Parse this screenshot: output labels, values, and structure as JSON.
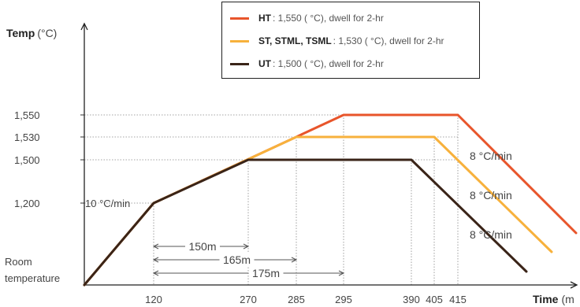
{
  "chart_data": {
    "type": "line",
    "y_axis_title": "Temp",
    "y_axis_unit": "(°C)",
    "x_axis_title": "Time",
    "x_axis_unit": "(m",
    "y_origin_label": [
      "Room",
      "temperature"
    ],
    "x_ticks": [
      120,
      270,
      285,
      295,
      390,
      405,
      415
    ],
    "x_tick_labels": [
      "120",
      "270",
      "285",
      "295",
      "390",
      "405",
      "415"
    ],
    "y_ticks": [
      1200,
      1500,
      1530,
      1550
    ],
    "y_tick_labels": [
      "1,200",
      "1,500",
      "1,530",
      "1,550"
    ],
    "legend": [
      {
        "name": "HT",
        "desc": ": 1,550 ( °C), dwell for 2-hr",
        "color": "#e8552b"
      },
      {
        "name": "ST, STML, TSML",
        "desc": ": 1,530 ( °C), dwell for 2-hr",
        "color": "#f7b13c"
      },
      {
        "name": "UT",
        "desc": ": 1,500 ( °C), dwell for 2-hr",
        "color": "#3a2418"
      }
    ],
    "series": [
      {
        "name": "HT",
        "color": "#e8552b",
        "points": [
          [
            "room",
            0
          ],
          [
            120,
            1200
          ],
          [
            295,
            1550
          ],
          [
            415,
            1550
          ],
          [
            540,
            1100
          ]
        ]
      },
      {
        "name": "ST, STML, TSML",
        "color": "#f7b13c",
        "points": [
          [
            "room",
            0
          ],
          [
            120,
            1200
          ],
          [
            285,
            1530
          ],
          [
            405,
            1530
          ],
          [
            525,
            1050
          ]
        ]
      },
      {
        "name": "UT",
        "color": "#3a2418",
        "points": [
          [
            "room",
            0
          ],
          [
            120,
            1200
          ],
          [
            270,
            1500
          ],
          [
            390,
            1500
          ],
          [
            495,
            1030
          ]
        ]
      }
    ],
    "annotations": {
      "heating_rate": "10 °C/min",
      "cooling_rates": [
        "8 °C/min",
        "8 °C/min",
        "8 °C/min"
      ],
      "spans": [
        "150m",
        "165m",
        "175m"
      ]
    }
  }
}
